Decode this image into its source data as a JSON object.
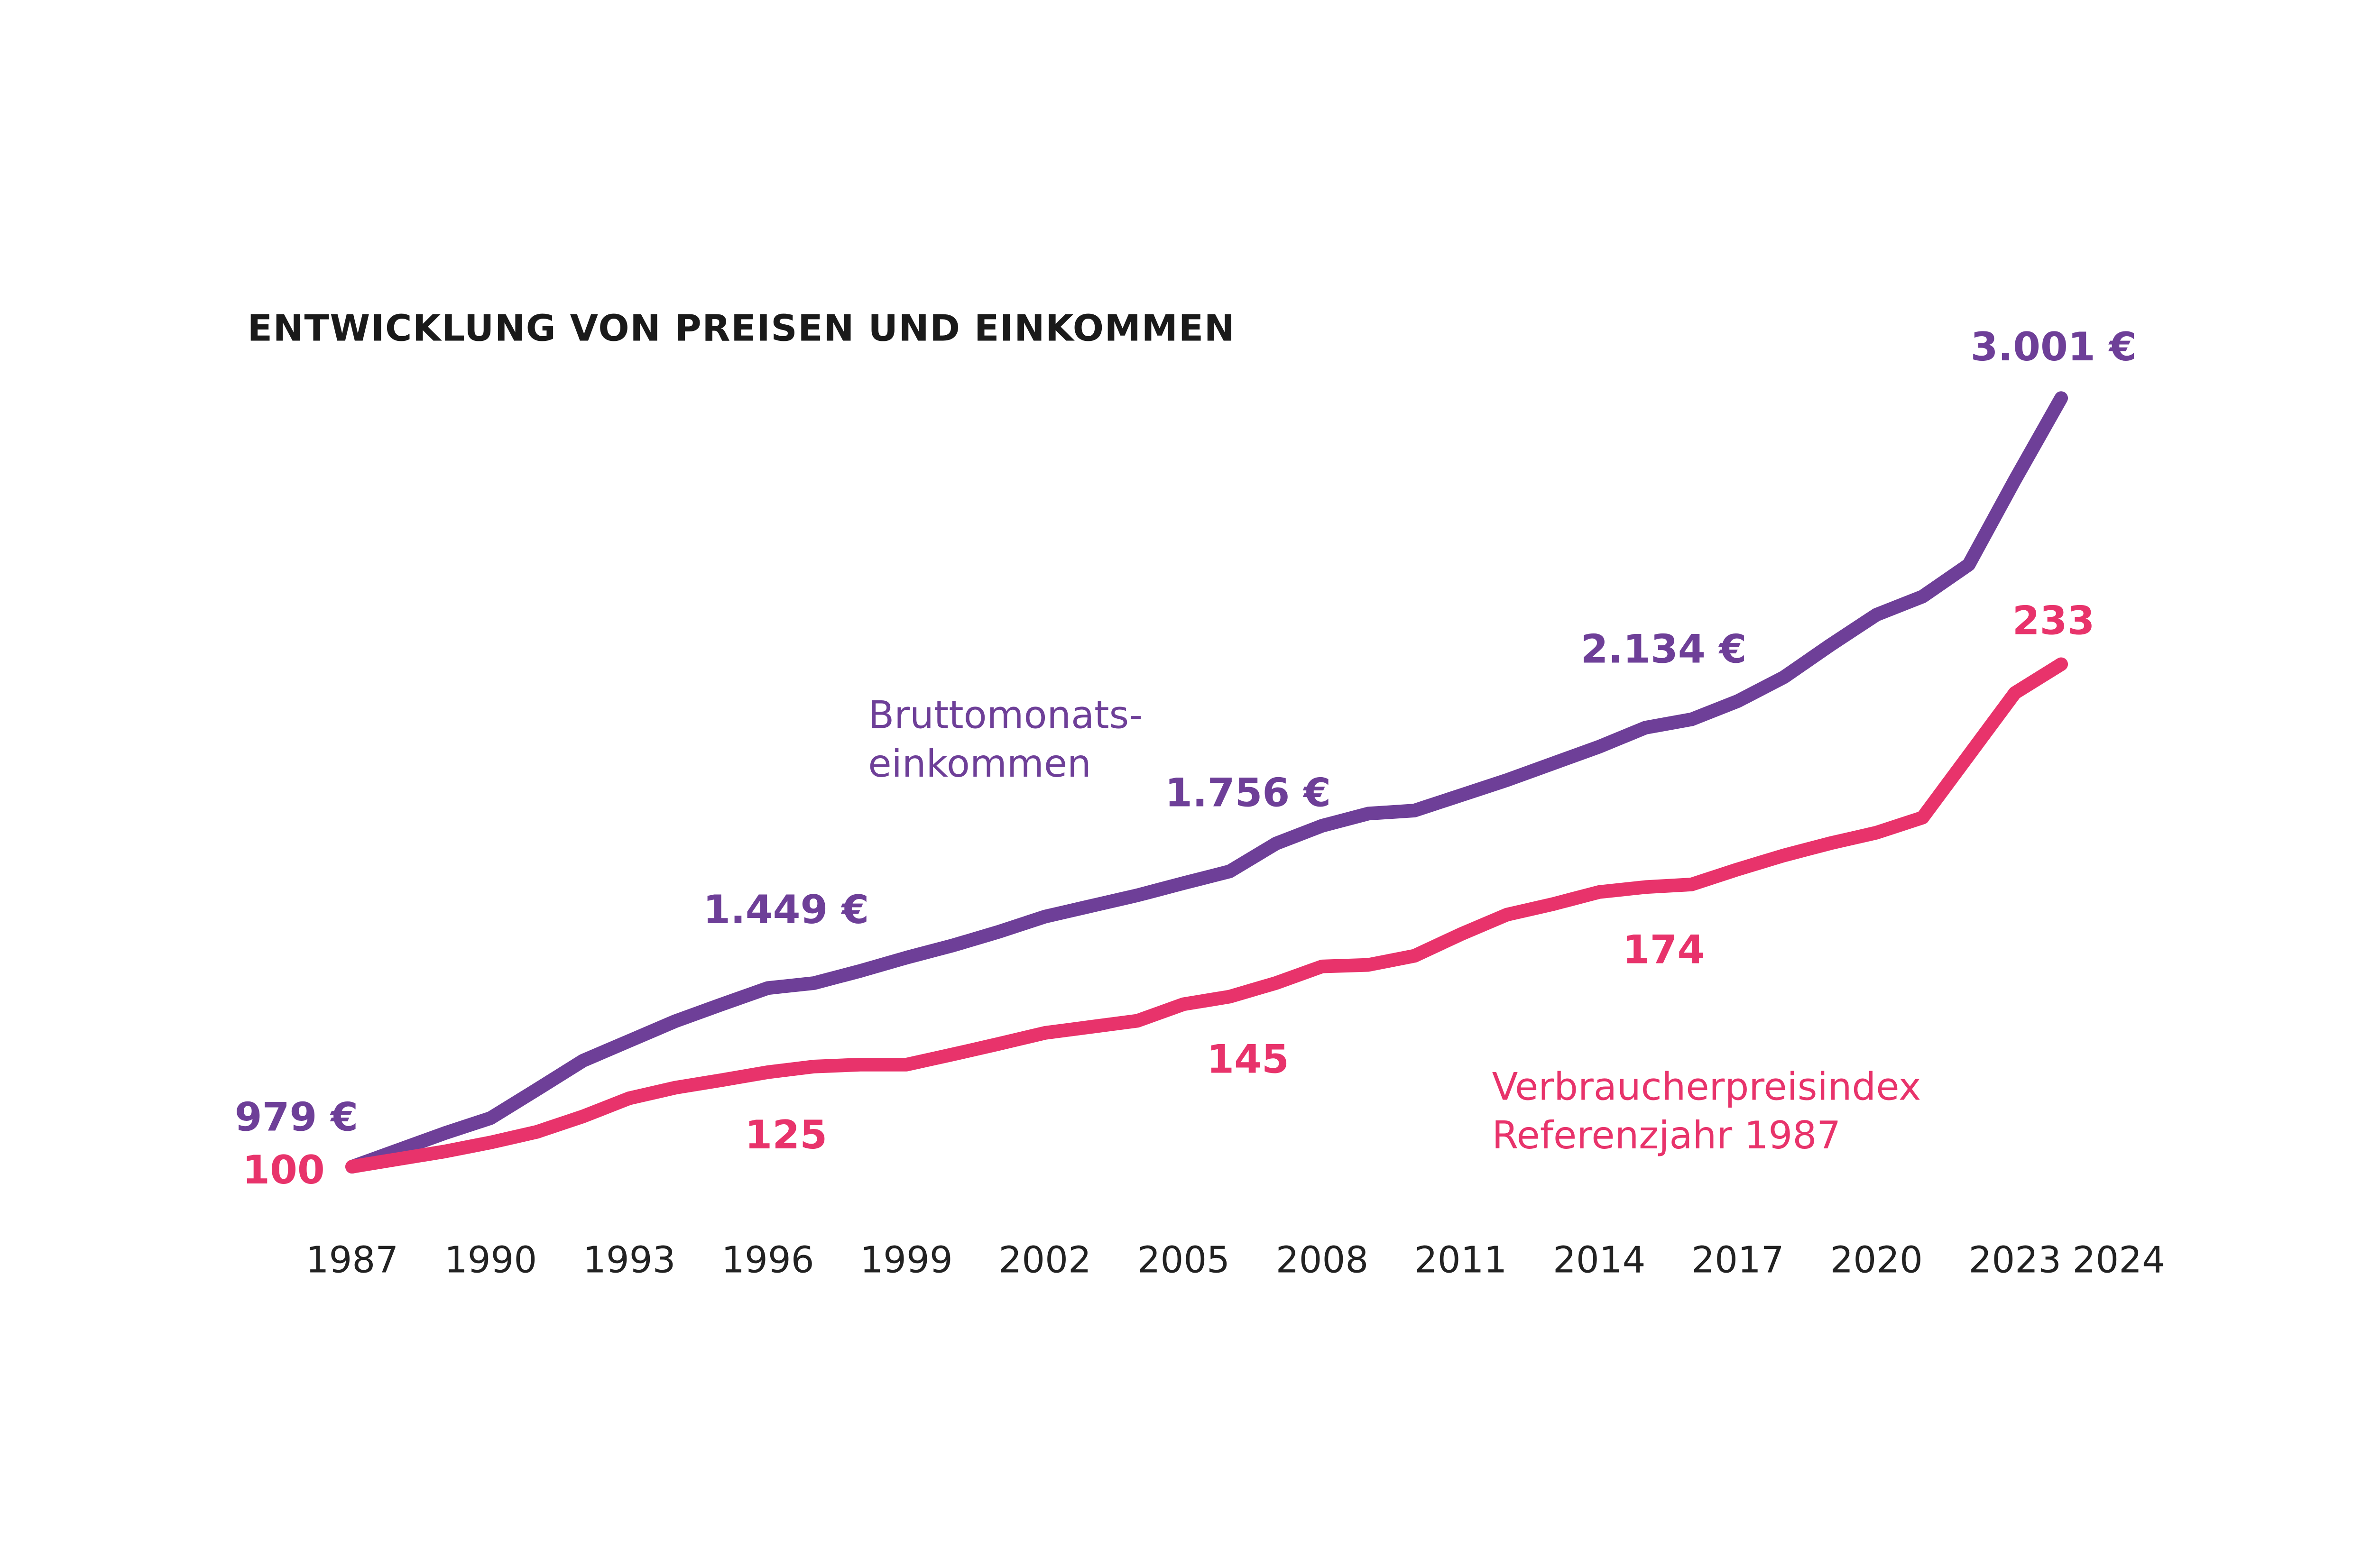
{
  "chart_data": {
    "type": "line",
    "title": "ENTWICKLUNG VON PREISEN UND EINKOMMEN",
    "x": [
      1987,
      1988,
      1989,
      1990,
      1991,
      1992,
      1993,
      1994,
      1995,
      1996,
      1997,
      1998,
      1999,
      2000,
      2001,
      2002,
      2003,
      2004,
      2005,
      2006,
      2007,
      2008,
      2009,
      2010,
      2011,
      2012,
      2013,
      2014,
      2015,
      2016,
      2017,
      2018,
      2019,
      2020,
      2021,
      2022,
      2023,
      2024
    ],
    "xlim": [
      1987,
      2024
    ],
    "xticks": [
      1987,
      1990,
      1993,
      1996,
      1999,
      2002,
      2005,
      2008,
      2011,
      2014,
      2017,
      2020,
      2023,
      2024
    ],
    "ylim": [
      855,
      3250
    ],
    "y2lim": [
      87.5,
      328.5
    ],
    "grid": false,
    "series": [
      {
        "name": [
          "Bruttomonats-",
          "einkommen"
        ],
        "color": "#6e3f98",
        "values": [
          979,
          1023,
          1067,
          1107,
          1182,
          1258,
          1310,
          1362,
          1406,
          1449,
          1462,
          1494,
          1529,
          1561,
          1597,
          1637,
          1665,
          1693,
          1725,
          1756,
          1829,
          1876,
          1908,
          1916,
          1956,
          1996,
          2040,
          2084,
          2134,
          2156,
          2204,
          2267,
          2351,
          2431,
          2479,
          2563,
          2786,
          3001
        ],
        "value_labels": [
          "979 €",
          null,
          null,
          null,
          null,
          null,
          null,
          null,
          null,
          "1.449 €",
          null,
          null,
          null,
          null,
          null,
          null,
          null,
          null,
          null,
          "1.756 €",
          null,
          null,
          null,
          null,
          null,
          null,
          null,
          null,
          "2.134 €",
          null,
          null,
          null,
          null,
          null,
          null,
          null,
          null,
          "3.001 €"
        ]
      },
      {
        "name": [
          "Verbraucherpreisindex",
          "Referenzjahr 1987"
        ],
        "color": "#e8336b",
        "axis": "y2",
        "values": [
          100,
          102,
          104,
          106.4,
          109.2,
          113.3,
          118.1,
          120.9,
          122.9,
          125,
          126.5,
          127,
          127,
          129.7,
          132.5,
          135.4,
          137,
          138.6,
          143,
          145,
          148.6,
          153,
          153.4,
          155.8,
          161.5,
          166.7,
          169.5,
          172.7,
          174,
          174.7,
          178.7,
          182.4,
          185.6,
          188.4,
          192.4,
          208.9,
          225.4,
          233
        ],
        "value_labels": [
          "100",
          null,
          null,
          null,
          null,
          null,
          null,
          null,
          null,
          "125",
          null,
          null,
          null,
          null,
          null,
          null,
          null,
          null,
          null,
          "145",
          null,
          null,
          null,
          null,
          null,
          null,
          null,
          null,
          "174",
          null,
          null,
          null,
          null,
          null,
          null,
          null,
          null,
          "233"
        ]
      }
    ]
  }
}
